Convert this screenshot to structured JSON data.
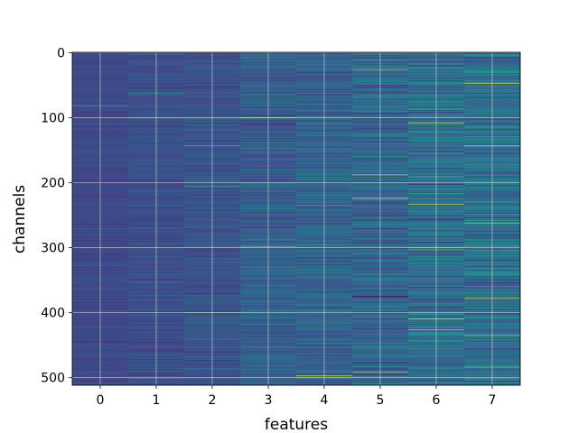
{
  "chart_data": {
    "type": "heatmap",
    "title": "",
    "xlabel": "features",
    "ylabel": "channels",
    "x_ticks": [
      0,
      1,
      2,
      3,
      4,
      5,
      6,
      7
    ],
    "y_ticks": [
      0,
      100,
      200,
      300,
      400,
      500
    ],
    "xlim": [
      -0.5,
      7.5
    ],
    "ylim": [
      511.5,
      -0.5
    ],
    "rows": 512,
    "columns": 8,
    "colormap": "viridis",
    "grid": true,
    "grid_color": "#ffffff",
    "column_means": [
      0.22,
      0.24,
      0.26,
      0.3,
      0.32,
      0.33,
      0.36,
      0.37
    ],
    "column_spread": [
      0.05,
      0.07,
      0.09,
      0.11,
      0.13,
      0.16,
      0.17,
      0.18
    ],
    "highlights": [
      {
        "feature": 0,
        "channel": 82,
        "value": 0.55
      },
      {
        "feature": 1,
        "channel": 62,
        "value": 0.55
      },
      {
        "feature": 2,
        "channel": 143,
        "value": 0.7
      },
      {
        "feature": 2,
        "channel": 206,
        "value": 0.6
      },
      {
        "feature": 2,
        "channel": 400,
        "value": 0.7
      },
      {
        "feature": 3,
        "channel": 100,
        "value": 0.7
      },
      {
        "feature": 3,
        "channel": 298,
        "value": 0.7
      },
      {
        "feature": 4,
        "channel": 497,
        "value": 0.9
      },
      {
        "feature": 4,
        "channel": 235,
        "value": 0.7
      },
      {
        "feature": 5,
        "channel": 26,
        "value": 0.85
      },
      {
        "feature": 5,
        "channel": 188,
        "value": 0.9
      },
      {
        "feature": 5,
        "channel": 224,
        "value": 0.95
      },
      {
        "feature": 5,
        "channel": 375,
        "value": 0.0
      },
      {
        "feature": 5,
        "channel": 491,
        "value": 0.8
      },
      {
        "feature": 6,
        "channel": 108,
        "value": 0.85
      },
      {
        "feature": 6,
        "channel": 233,
        "value": 0.9
      },
      {
        "feature": 6,
        "channel": 410,
        "value": 0.95
      },
      {
        "feature": 6,
        "channel": 426,
        "value": 0.9
      },
      {
        "feature": 6,
        "channel": 303,
        "value": 0.7
      },
      {
        "feature": 7,
        "channel": 47,
        "value": 0.95
      },
      {
        "feature": 7,
        "channel": 143,
        "value": 0.9
      },
      {
        "feature": 7,
        "channel": 262,
        "value": 0.85
      },
      {
        "feature": 7,
        "channel": 378,
        "value": 0.9
      },
      {
        "feature": 7,
        "channel": 435,
        "value": 0.8
      },
      {
        "feature": 7,
        "channel": 484,
        "value": 0.7
      }
    ]
  }
}
